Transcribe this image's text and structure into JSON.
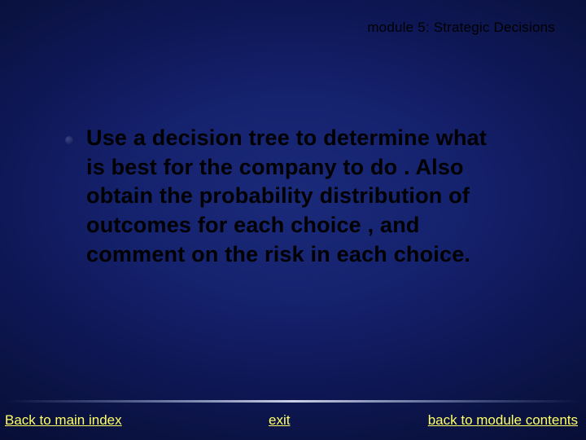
{
  "header": {
    "text": "module 5: Strategic Decisions"
  },
  "body": {
    "text": "Use a decision tree to determine what is best for the company to do .          Also obtain the probability distribution of outcomes for each choice , and comment on the risk in each choice."
  },
  "footer": {
    "left": "Back to main index",
    "center": "exit",
    "right": "back to module contents"
  },
  "colors": {
    "link": "#ffff66",
    "text_body": "#000000",
    "bg_center": "#1a2a7a",
    "bg_edge": "#030618"
  }
}
